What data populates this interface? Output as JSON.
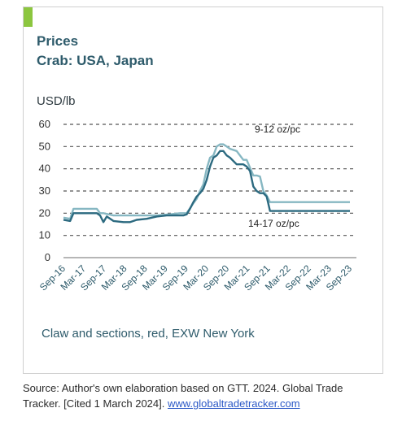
{
  "panel": {
    "title": "Prices",
    "subtitle": "Crab: USA, Japan",
    "note": "Claw and sections, red, EXW New York",
    "accent_color": "#8cc63f"
  },
  "source": {
    "text": "Source: Author's own elaboration based on GTT. 2024. Global Trade Tracker. [Cited 1 March 2024]. ",
    "link": "www.globaltradetracker.com"
  },
  "chart_data": {
    "type": "line",
    "title": "Prices",
    "subtitle": "Crab: USA, Japan",
    "ylabel": "USD/lb",
    "ylim": [
      0,
      60
    ],
    "yticks": [
      0,
      10,
      20,
      30,
      40,
      50,
      60
    ],
    "grid": true,
    "xticks": [
      "Sep-16",
      "Mar-17",
      "Sep-17",
      "Mar-18",
      "Sep-18",
      "Mar-19",
      "Sep-19",
      "Mar-20",
      "Sep-20",
      "Mar-21",
      "Sep-21",
      "Mar-22",
      "Sep-22",
      "Mar-23",
      "Sep-23"
    ],
    "x_index_range": [
      0,
      86
    ],
    "annotations": [
      "9-12 oz/pc",
      "14-17 oz/pc"
    ],
    "series": [
      {
        "name": "9-12 oz/pc",
        "color": "#86b7c2",
        "x": [
          0,
          2,
          3,
          6,
          10,
          11,
          12,
          15,
          18,
          20,
          22,
          25,
          28,
          32,
          35,
          36,
          37,
          39,
          40,
          41,
          42,
          43,
          44,
          45,
          46,
          47,
          48,
          49,
          50,
          52,
          54,
          55,
          57,
          58,
          59,
          60,
          61,
          62,
          64,
          86
        ],
        "y": [
          18,
          17.5,
          22,
          22,
          22,
          20,
          20,
          19,
          19,
          19,
          19,
          19,
          19,
          19.5,
          20,
          20,
          20,
          24.5,
          26.5,
          30,
          33,
          40,
          45,
          46,
          50,
          51,
          51,
          50,
          49,
          48,
          44,
          44,
          37,
          37,
          36.5,
          30,
          28,
          25,
          25,
          25
        ]
      },
      {
        "name": "14-17 oz/pc",
        "color": "#2c6a80",
        "x": [
          0,
          2,
          3,
          6,
          10,
          11,
          12,
          13,
          15,
          18,
          20,
          21,
          22,
          25,
          28,
          31,
          34,
          35,
          36,
          37,
          38,
          39,
          40,
          41,
          42,
          43,
          44,
          45,
          46,
          47,
          48,
          49,
          50,
          52,
          54,
          55,
          56,
          57,
          58,
          59,
          60,
          61,
          62,
          64,
          86
        ],
        "y": [
          17,
          16.5,
          20,
          20,
          20,
          19,
          16,
          18.5,
          16.5,
          16,
          16,
          16.5,
          17,
          17.5,
          18.5,
          19,
          19,
          19,
          19,
          19.5,
          22,
          25,
          27.5,
          29,
          31,
          35,
          41,
          45,
          46,
          48,
          48,
          46,
          45,
          42,
          42,
          41,
          39,
          32,
          30,
          29,
          29,
          27.5,
          21,
          21,
          21
        ]
      }
    ]
  }
}
